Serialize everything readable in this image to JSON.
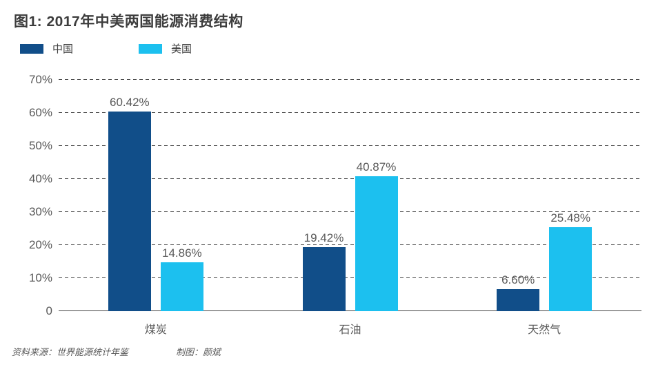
{
  "page": {
    "title": "图1: 2017年中美两国能源消费结构",
    "footer": {
      "source": "资料来源：世界能源统计年鉴",
      "credit": "制图：颜斌"
    }
  },
  "colors": {
    "china_series": "#114e89",
    "usa_series": "#1cc0ef",
    "text_primary": "#3d3d3d",
    "text_secondary": "#595959",
    "gridline": "#4a4a4a"
  },
  "chart_data": {
    "type": "bar",
    "title": "图1: 2017年中美两国能源消费结构",
    "categories": [
      "煤炭",
      "石油",
      "天然气"
    ],
    "category_keys": [
      "coal",
      "oil",
      "natural-gas"
    ],
    "series": [
      {
        "name": "中国",
        "key": "china",
        "color": "#114e89",
        "values": [
          60.42,
          19.42,
          6.6
        ],
        "labels": [
          "60.42%",
          "19.42%",
          "6.60%"
        ]
      },
      {
        "name": "美国",
        "key": "usa",
        "color": "#1cc0ef",
        "values": [
          14.86,
          40.87,
          25.48
        ],
        "labels": [
          "14.86%",
          "40.87%",
          "25.48%"
        ]
      }
    ],
    "xlabel": "",
    "ylabel": "",
    "ylim": [
      0,
      70
    ],
    "yticks": [
      0,
      10,
      20,
      30,
      40,
      50,
      60,
      70
    ],
    "ytick_labels": [
      "0",
      "10%",
      "20%",
      "30%",
      "40%",
      "50%",
      "60%",
      "70%"
    ],
    "grid": "horizontal-dashed",
    "legend_position": "top-left"
  }
}
